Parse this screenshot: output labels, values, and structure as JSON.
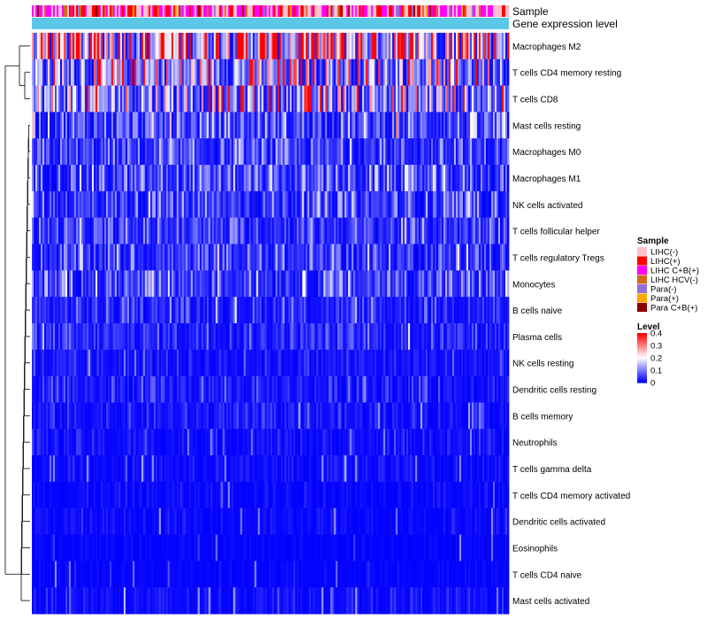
{
  "chart_data": {
    "type": "heatmap",
    "title": "",
    "annotation_rows": [
      "Sample",
      "Gene expression level"
    ],
    "rows": [
      {
        "label": "Macrophages M2",
        "mean": 0.3
      },
      {
        "label": "T cells CD4 memory resting",
        "mean": 0.16
      },
      {
        "label": "T cells CD8",
        "mean": 0.15
      },
      {
        "label": "Mast cells resting",
        "mean": 0.07
      },
      {
        "label": "Macrophages M0",
        "mean": 0.05
      },
      {
        "label": "Macrophages M1",
        "mean": 0.06
      },
      {
        "label": "NK cells activated",
        "mean": 0.055
      },
      {
        "label": "T cells follicular helper",
        "mean": 0.05
      },
      {
        "label": "T cells regulatory  Tregs",
        "mean": 0.05
      },
      {
        "label": "Monocytes",
        "mean": 0.065
      },
      {
        "label": "B cells naive",
        "mean": 0.035
      },
      {
        "label": "Plasma cells",
        "mean": 0.035
      },
      {
        "label": "NK cells resting",
        "mean": 0.02
      },
      {
        "label": "Dendritic cells resting",
        "mean": 0.025
      },
      {
        "label": "B cells memory",
        "mean": 0.02
      },
      {
        "label": "Neutrophils",
        "mean": 0.015
      },
      {
        "label": "T cells gamma delta",
        "mean": 0.012
      },
      {
        "label": "T cells CD4 memory activated",
        "mean": 0.01
      },
      {
        "label": "Dendritic cells activated",
        "mean": 0.01
      },
      {
        "label": "Eosinophils",
        "mean": 0.005
      },
      {
        "label": "T cells CD4 naive",
        "mean": 0.005
      },
      {
        "label": "Mast cells activated",
        "mean": 0.015
      }
    ],
    "color_scale": {
      "min": 0,
      "max": 0.4,
      "stops": [
        {
          "value": 0,
          "color": "#0000ff"
        },
        {
          "value": 0.2,
          "color": "#ffffff"
        },
        {
          "value": 0.4,
          "color": "#ff0000"
        }
      ]
    },
    "legend": {
      "position": "right",
      "sample_title": "Sample",
      "sample_entries": [
        {
          "label": "LIHC(-)",
          "color": "#ffc0cb"
        },
        {
          "label": "LIHC(+)",
          "color": "#ff0000"
        },
        {
          "label": "LIHC C+B(+)",
          "color": "#ff00ff"
        },
        {
          "label": "LIHC HCV(-)",
          "color": "#d2691e"
        },
        {
          "label": "Para(-)",
          "color": "#9370db"
        },
        {
          "label": "Para(+)",
          "color": "#ffa500"
        },
        {
          "label": "Para C+B(+)",
          "color": "#8b0000"
        }
      ],
      "level_title": "Level",
      "level_ticks": [
        "0.4",
        "0.3",
        "0.2",
        "0.1",
        "0"
      ]
    },
    "expression_bar_color": "#5bc8e8",
    "dendrogram": "row-clustering, left side"
  }
}
